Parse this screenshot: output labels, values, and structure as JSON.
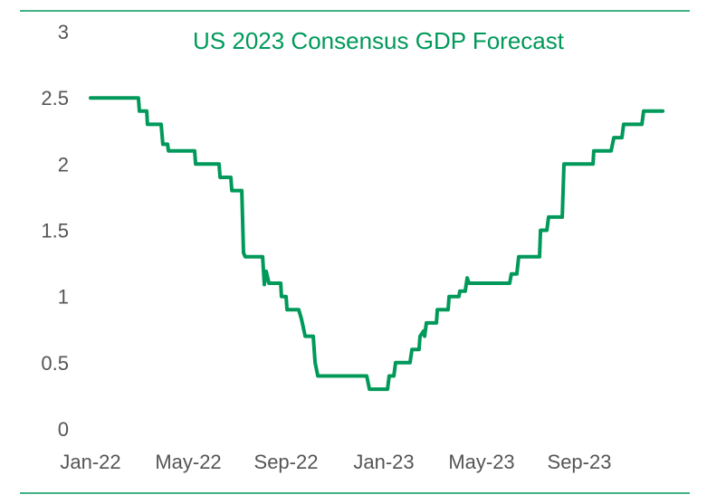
{
  "chart_data": {
    "type": "line",
    "title": "US 2023 Consensus GDP Forecast",
    "xlabel": "",
    "ylabel": "",
    "ylim": [
      0,
      3
    ],
    "yticks": [
      "0",
      "0.5",
      "1",
      "1.5",
      "2",
      "2.5",
      "3"
    ],
    "ytick_values": [
      0,
      0.5,
      1,
      1.5,
      2,
      2.5,
      3
    ],
    "xticks": [
      "Jan-22",
      "May-22",
      "Sep-22",
      "Jan-23",
      "May-23",
      "Sep-23"
    ],
    "xtick_months": [
      0,
      4,
      8,
      12,
      16,
      20
    ],
    "x_unit": "months since Jan-22",
    "xlim": [
      0,
      24
    ],
    "grid": false,
    "legend": "none",
    "color": "#00995a",
    "series": [
      {
        "name": "US 2023 Consensus GDP Forecast",
        "points": [
          [
            0,
            2.5
          ],
          [
            1.96,
            2.5
          ],
          [
            2.0,
            2.4
          ],
          [
            2.3,
            2.4
          ],
          [
            2.33,
            2.3
          ],
          [
            2.89,
            2.3
          ],
          [
            2.96,
            2.15
          ],
          [
            3.15,
            2.15
          ],
          [
            3.19,
            2.1
          ],
          [
            4.26,
            2.1
          ],
          [
            4.3,
            2.0
          ],
          [
            5.26,
            2.0
          ],
          [
            5.3,
            1.9
          ],
          [
            5.74,
            1.9
          ],
          [
            5.78,
            1.8
          ],
          [
            6.19,
            1.8
          ],
          [
            6.26,
            1.33
          ],
          [
            6.33,
            1.3
          ],
          [
            7.04,
            1.3
          ],
          [
            7.11,
            1.09
          ],
          [
            7.19,
            1.19
          ],
          [
            7.3,
            1.1
          ],
          [
            7.78,
            1.1
          ],
          [
            7.81,
            1.0
          ],
          [
            8.0,
            1.0
          ],
          [
            8.04,
            0.9
          ],
          [
            8.52,
            0.9
          ],
          [
            8.63,
            0.83
          ],
          [
            8.78,
            0.7
          ],
          [
            9.11,
            0.7
          ],
          [
            9.19,
            0.5
          ],
          [
            9.3,
            0.4
          ],
          [
            11.3,
            0.4
          ],
          [
            11.41,
            0.3
          ],
          [
            12.15,
            0.3
          ],
          [
            12.22,
            0.4
          ],
          [
            12.41,
            0.4
          ],
          [
            12.48,
            0.5
          ],
          [
            13.07,
            0.5
          ],
          [
            13.15,
            0.6
          ],
          [
            13.44,
            0.6
          ],
          [
            13.48,
            0.7
          ],
          [
            13.63,
            0.74
          ],
          [
            13.67,
            0.7
          ],
          [
            13.74,
            0.8
          ],
          [
            14.15,
            0.8
          ],
          [
            14.19,
            0.9
          ],
          [
            14.63,
            0.9
          ],
          [
            14.67,
            1.0
          ],
          [
            15.07,
            1.0
          ],
          [
            15.11,
            1.04
          ],
          [
            15.33,
            1.04
          ],
          [
            15.41,
            1.14
          ],
          [
            15.48,
            1.1
          ],
          [
            17.15,
            1.1
          ],
          [
            17.22,
            1.17
          ],
          [
            17.44,
            1.17
          ],
          [
            17.52,
            1.3
          ],
          [
            18.37,
            1.3
          ],
          [
            18.41,
            1.5
          ],
          [
            18.67,
            1.5
          ],
          [
            18.74,
            1.6
          ],
          [
            19.3,
            1.6
          ],
          [
            19.37,
            2.0
          ],
          [
            20.56,
            2.0
          ],
          [
            20.59,
            2.1
          ],
          [
            21.3,
            2.1
          ],
          [
            21.41,
            2.2
          ],
          [
            21.74,
            2.2
          ],
          [
            21.81,
            2.3
          ],
          [
            22.56,
            2.3
          ],
          [
            22.63,
            2.4
          ],
          [
            23.41,
            2.4
          ]
        ]
      }
    ]
  }
}
